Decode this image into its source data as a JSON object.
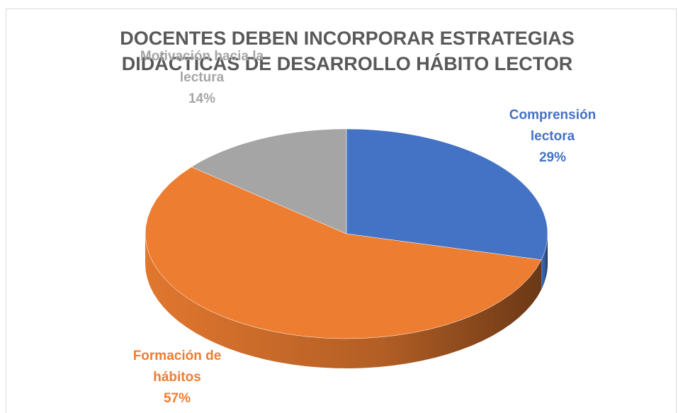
{
  "chart_data": {
    "type": "pie",
    "title": "DOCENTES DEBEN INCORPORAR ESTRATEGIAS DIDÁCTICAS DE DESARROLLO HÁBITO LECTOR",
    "categories": [
      "Comprensión lectora",
      "Formación de hábitos",
      "Motivación hacia la lectura"
    ],
    "values": [
      29,
      57,
      14
    ],
    "value_labels": [
      "29%",
      "57%",
      "14%"
    ],
    "colors": [
      "#4472c4",
      "#ed7d31",
      "#a5a5a5"
    ]
  }
}
